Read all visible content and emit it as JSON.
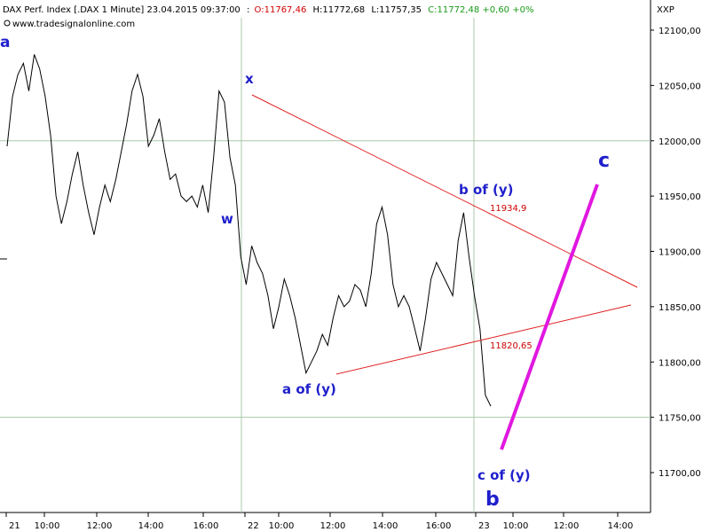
{
  "header": {
    "symbol": "DAX Perf. Index [.DAX  1 Minute] 23.04.2015 09:37:00",
    "open": "O:11767,46",
    "high": "H:11772,68",
    "low": "L:11757,35",
    "close_change": "C:11772,48 +0,60 +0%",
    "source": "www.tradesignalonline.com",
    "axis_code": "XXP"
  },
  "chart_data": {
    "type": "line",
    "title": "DAX Perf. Index [.DAX  1 Minute] 23.04.2015 09:37:00",
    "ylim": [
      11650,
      12120
    ],
    "y_ticks": [
      {
        "value": 12100,
        "label": "12100,00"
      },
      {
        "value": 12050,
        "label": "12050,00"
      },
      {
        "value": 12000,
        "label": "12000,00"
      },
      {
        "value": 11950,
        "label": "11950,00"
      },
      {
        "value": 11900,
        "label": "11900,00"
      },
      {
        "value": 11850,
        "label": "11850,00"
      },
      {
        "value": 11800,
        "label": "11800,00"
      },
      {
        "value": 11750,
        "label": "11750,00"
      },
      {
        "value": 11700,
        "label": "11700,00"
      }
    ],
    "x_ticks": [
      "21",
      "10:00",
      "12:00",
      "14:00",
      "16:00",
      "22",
      "10:00",
      "12:00",
      "14:00",
      "16:00",
      "23",
      "10:00",
      "12:00",
      "14:00"
    ],
    "horizontal_gridlines": [
      12000,
      11750
    ],
    "vertical_gridlines_at": [
      "22",
      "23"
    ],
    "series": [
      {
        "values": [
          11995,
          12040,
          12060,
          12070,
          12045,
          12078,
          12065,
          12040,
          12005,
          11950,
          11925,
          11945,
          11970,
          11990,
          11960,
          11935,
          11915,
          11940,
          11960,
          11945,
          11965,
          11990,
          12015,
          12045,
          12060,
          12040,
          11995,
          12005,
          12020,
          11990,
          11965,
          11970,
          11950,
          11945,
          11950,
          11940,
          11960,
          11935,
          11985,
          12045,
          12035,
          11985,
          11960,
          11895,
          11870,
          11905,
          11890,
          11880,
          11860,
          11830,
          11850,
          11875,
          11860,
          11840,
          11815,
          11790,
          11800,
          11810,
          11825,
          11815,
          11840,
          11860,
          11850,
          11855,
          11870,
          11865,
          11850,
          11880,
          11925,
          11940,
          11915,
          11870,
          11850,
          11860,
          11850,
          11830,
          11810,
          11840,
          11875,
          11890,
          11880,
          11870,
          11860,
          11910,
          11935,
          11895,
          11860,
          11830,
          11770,
          11760
        ]
      }
    ],
    "wave_labels": [
      "a",
      "w",
      "x",
      "a of (y)",
      "b of (y)",
      "c of (y)",
      "b",
      "c"
    ],
    "price_levels": [
      {
        "label": "11934,9",
        "value": 11934.9
      },
      {
        "label": "11820,65",
        "value": 11820.65
      }
    ]
  },
  "colors": {
    "price_line": "#000000",
    "trendline": "#e02020",
    "projection": "#e018e0",
    "wave_label": "#1f1fcc",
    "grid": "#a8c8a8"
  }
}
